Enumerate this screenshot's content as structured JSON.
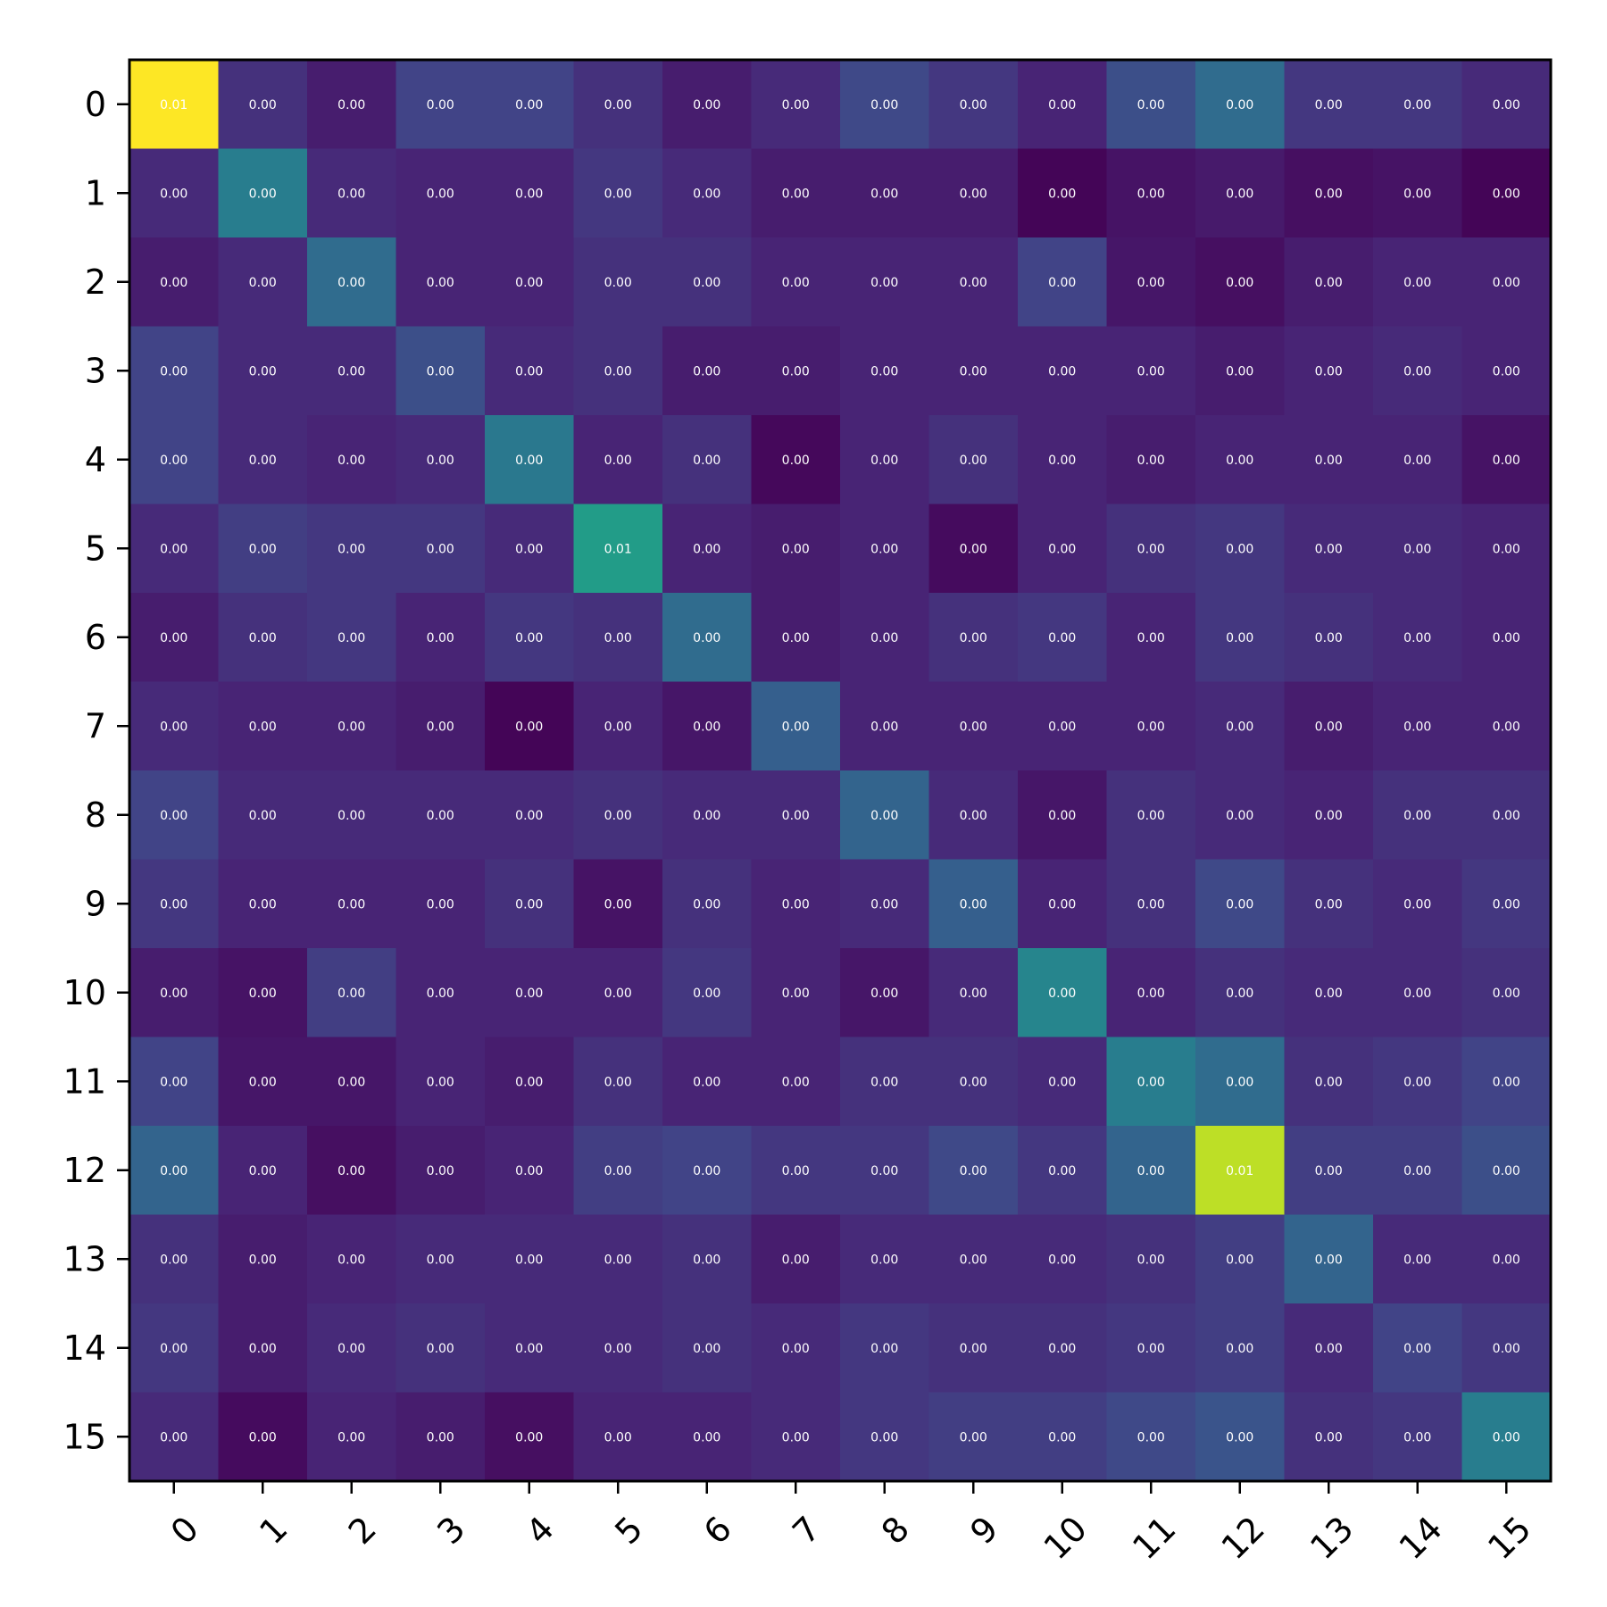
{
  "chart_data": {
    "type": "heatmap",
    "title": "",
    "xlabel": "",
    "ylabel": "",
    "x_ticks": [
      "0",
      "1",
      "2",
      "3",
      "4",
      "5",
      "6",
      "7",
      "8",
      "9",
      "10",
      "11",
      "12",
      "13",
      "14",
      "15"
    ],
    "y_ticks": [
      "0",
      "1",
      "2",
      "3",
      "4",
      "5",
      "6",
      "7",
      "8",
      "9",
      "10",
      "11",
      "12",
      "13",
      "14",
      "15"
    ],
    "colormap": "viridis",
    "vmin": 0.0,
    "vmax": 0.01,
    "grid": false,
    "values": [
      [
        0.01,
        0.0014,
        0.0008,
        0.002,
        0.002,
        0.0014,
        0.0008,
        0.0012,
        0.0022,
        0.0016,
        0.001,
        0.0024,
        0.0035,
        0.0016,
        0.0016,
        0.0012
      ],
      [
        0.0012,
        0.0042,
        0.0012,
        0.001,
        0.001,
        0.0016,
        0.0012,
        0.0008,
        0.0008,
        0.0008,
        0.0001,
        0.0005,
        0.0007,
        0.0004,
        0.0005,
        0.0001
      ],
      [
        0.0008,
        0.0012,
        0.0035,
        0.001,
        0.001,
        0.0014,
        0.0014,
        0.001,
        0.001,
        0.001,
        0.002,
        0.0006,
        0.0004,
        0.0008,
        0.001,
        0.001
      ],
      [
        0.002,
        0.0012,
        0.0012,
        0.0024,
        0.0012,
        0.0014,
        0.0008,
        0.0008,
        0.001,
        0.001,
        0.001,
        0.001,
        0.0008,
        0.001,
        0.0012,
        0.001
      ],
      [
        0.002,
        0.0012,
        0.001,
        0.0012,
        0.004,
        0.001,
        0.0014,
        0.0002,
        0.001,
        0.0014,
        0.001,
        0.0008,
        0.001,
        0.001,
        0.001,
        0.0005
      ],
      [
        0.0012,
        0.0018,
        0.0016,
        0.0016,
        0.0012,
        0.0055,
        0.001,
        0.0008,
        0.001,
        0.0003,
        0.001,
        0.0014,
        0.0016,
        0.0012,
        0.0012,
        0.001
      ],
      [
        0.0008,
        0.0014,
        0.0016,
        0.001,
        0.0016,
        0.0014,
        0.0035,
        0.0008,
        0.001,
        0.0014,
        0.0016,
        0.001,
        0.0016,
        0.0014,
        0.0012,
        0.001
      ],
      [
        0.0012,
        0.001,
        0.001,
        0.0008,
        0.0001,
        0.001,
        0.0006,
        0.003,
        0.001,
        0.001,
        0.001,
        0.001,
        0.0012,
        0.0008,
        0.001,
        0.001
      ],
      [
        0.002,
        0.0012,
        0.0012,
        0.0012,
        0.0012,
        0.0014,
        0.0012,
        0.0012,
        0.0032,
        0.0012,
        0.0006,
        0.0014,
        0.0012,
        0.001,
        0.0014,
        0.0014
      ],
      [
        0.0016,
        0.001,
        0.001,
        0.001,
        0.0014,
        0.0005,
        0.0014,
        0.001,
        0.0012,
        0.003,
        0.001,
        0.0014,
        0.0022,
        0.0014,
        0.0012,
        0.0016
      ],
      [
        0.0008,
        0.0005,
        0.0018,
        0.001,
        0.001,
        0.001,
        0.0016,
        0.001,
        0.0006,
        0.0012,
        0.0045,
        0.001,
        0.0014,
        0.0012,
        0.0012,
        0.0014
      ],
      [
        0.002,
        0.0006,
        0.0006,
        0.001,
        0.0008,
        0.0014,
        0.001,
        0.001,
        0.0014,
        0.0014,
        0.0012,
        0.0042,
        0.0035,
        0.0014,
        0.0016,
        0.002
      ],
      [
        0.0032,
        0.001,
        0.0004,
        0.0008,
        0.001,
        0.0018,
        0.002,
        0.0016,
        0.0016,
        0.0022,
        0.0016,
        0.0032,
        0.009,
        0.0018,
        0.0018,
        0.0024
      ],
      [
        0.0014,
        0.0008,
        0.001,
        0.0012,
        0.0012,
        0.0012,
        0.0014,
        0.0008,
        0.0012,
        0.0012,
        0.0012,
        0.0014,
        0.0018,
        0.0032,
        0.0012,
        0.0012
      ],
      [
        0.0016,
        0.0008,
        0.0012,
        0.0014,
        0.0012,
        0.0012,
        0.0014,
        0.0012,
        0.0016,
        0.0014,
        0.0014,
        0.0016,
        0.0018,
        0.0012,
        0.002,
        0.0016
      ],
      [
        0.0012,
        0.0003,
        0.001,
        0.0008,
        0.0004,
        0.001,
        0.001,
        0.0012,
        0.0016,
        0.0018,
        0.0018,
        0.0022,
        0.0026,
        0.0014,
        0.0016,
        0.0042
      ]
    ],
    "cell_labels": [
      [
        "0.01",
        "0.00",
        "0.00",
        "0.00",
        "0.00",
        "0.00",
        "0.00",
        "0.00",
        "0.00",
        "0.00",
        "0.00",
        "0.00",
        "0.00",
        "0.00",
        "0.00",
        "0.00"
      ],
      [
        "0.00",
        "0.00",
        "0.00",
        "0.00",
        "0.00",
        "0.00",
        "0.00",
        "0.00",
        "0.00",
        "0.00",
        "0.00",
        "0.00",
        "0.00",
        "0.00",
        "0.00",
        "0.00"
      ],
      [
        "0.00",
        "0.00",
        "0.00",
        "0.00",
        "0.00",
        "0.00",
        "0.00",
        "0.00",
        "0.00",
        "0.00",
        "0.00",
        "0.00",
        "0.00",
        "0.00",
        "0.00",
        "0.00"
      ],
      [
        "0.00",
        "0.00",
        "0.00",
        "0.00",
        "0.00",
        "0.00",
        "0.00",
        "0.00",
        "0.00",
        "0.00",
        "0.00",
        "0.00",
        "0.00",
        "0.00",
        "0.00",
        "0.00"
      ],
      [
        "0.00",
        "0.00",
        "0.00",
        "0.00",
        "0.00",
        "0.00",
        "0.00",
        "0.00",
        "0.00",
        "0.00",
        "0.00",
        "0.00",
        "0.00",
        "0.00",
        "0.00",
        "0.00"
      ],
      [
        "0.00",
        "0.00",
        "0.00",
        "0.00",
        "0.00",
        "0.01",
        "0.00",
        "0.00",
        "0.00",
        "0.00",
        "0.00",
        "0.00",
        "0.00",
        "0.00",
        "0.00",
        "0.00"
      ],
      [
        "0.00",
        "0.00",
        "0.00",
        "0.00",
        "0.00",
        "0.00",
        "0.00",
        "0.00",
        "0.00",
        "0.00",
        "0.00",
        "0.00",
        "0.00",
        "0.00",
        "0.00",
        "0.00"
      ],
      [
        "0.00",
        "0.00",
        "0.00",
        "0.00",
        "0.00",
        "0.00",
        "0.00",
        "0.00",
        "0.00",
        "0.00",
        "0.00",
        "0.00",
        "0.00",
        "0.00",
        "0.00",
        "0.00"
      ],
      [
        "0.00",
        "0.00",
        "0.00",
        "0.00",
        "0.00",
        "0.00",
        "0.00",
        "0.00",
        "0.00",
        "0.00",
        "0.00",
        "0.00",
        "0.00",
        "0.00",
        "0.00",
        "0.00"
      ],
      [
        "0.00",
        "0.00",
        "0.00",
        "0.00",
        "0.00",
        "0.00",
        "0.00",
        "0.00",
        "0.00",
        "0.00",
        "0.00",
        "0.00",
        "0.00",
        "0.00",
        "0.00",
        "0.00"
      ],
      [
        "0.00",
        "0.00",
        "0.00",
        "0.00",
        "0.00",
        "0.00",
        "0.00",
        "0.00",
        "0.00",
        "0.00",
        "0.00",
        "0.00",
        "0.00",
        "0.00",
        "0.00",
        "0.00"
      ],
      [
        "0.00",
        "0.00",
        "0.00",
        "0.00",
        "0.00",
        "0.00",
        "0.00",
        "0.00",
        "0.00",
        "0.00",
        "0.00",
        "0.00",
        "0.00",
        "0.00",
        "0.00",
        "0.00"
      ],
      [
        "0.00",
        "0.00",
        "0.00",
        "0.00",
        "0.00",
        "0.00",
        "0.00",
        "0.00",
        "0.00",
        "0.00",
        "0.00",
        "0.00",
        "0.01",
        "0.00",
        "0.00",
        "0.00"
      ],
      [
        "0.00",
        "0.00",
        "0.00",
        "0.00",
        "0.00",
        "0.00",
        "0.00",
        "0.00",
        "0.00",
        "0.00",
        "0.00",
        "0.00",
        "0.00",
        "0.00",
        "0.00",
        "0.00"
      ],
      [
        "0.00",
        "0.00",
        "0.00",
        "0.00",
        "0.00",
        "0.00",
        "0.00",
        "0.00",
        "0.00",
        "0.00",
        "0.00",
        "0.00",
        "0.00",
        "0.00",
        "0.00",
        "0.00"
      ],
      [
        "0.00",
        "0.00",
        "0.00",
        "0.00",
        "0.00",
        "0.00",
        "0.00",
        "0.00",
        "0.00",
        "0.00",
        "0.00",
        "0.00",
        "0.00",
        "0.00",
        "0.00",
        "0.00"
      ]
    ]
  }
}
